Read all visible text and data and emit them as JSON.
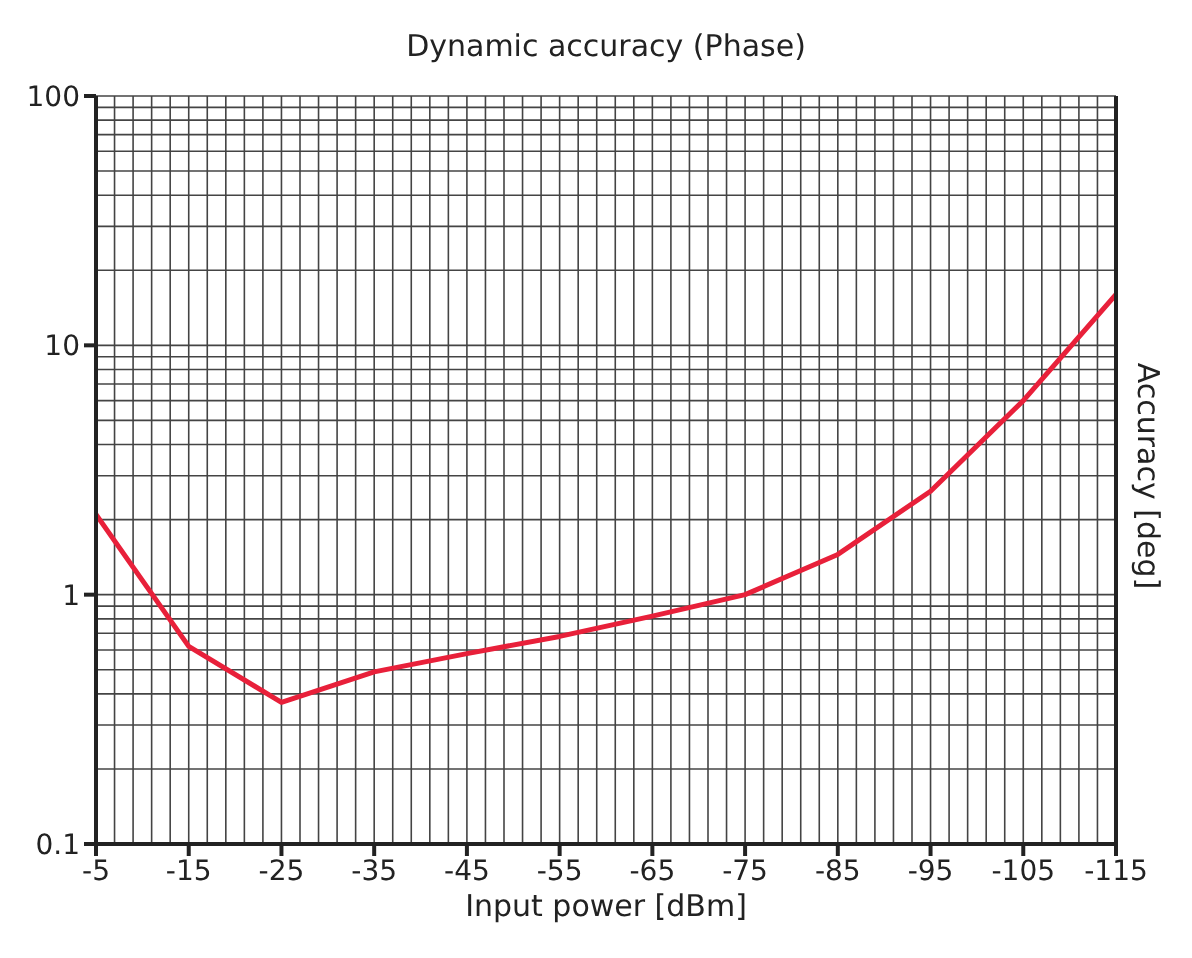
{
  "chart_data": {
    "type": "line",
    "title": "Dynamic accuracy (Phase)",
    "xlabel": "Input power [dBm]",
    "ylabel": "Accuracy [deg]",
    "x": [
      -5,
      -15,
      -25,
      -35,
      -45,
      -55,
      -65,
      -75,
      -85,
      -95,
      -105,
      -115
    ],
    "series": [
      {
        "color": "#e8203a",
        "values": [
          2.1,
          0.62,
          0.37,
          0.49,
          0.58,
          0.68,
          0.82,
          1.0,
          1.45,
          2.6,
          6.0,
          16
        ]
      }
    ],
    "xlim": [
      -5,
      -115
    ],
    "xticks": [
      -5,
      -15,
      -25,
      -35,
      -45,
      -55,
      -65,
      -75,
      -85,
      -95,
      -105,
      -115
    ],
    "ylim": [
      0.1,
      100
    ],
    "yticks": [
      0.1,
      1,
      10,
      100
    ],
    "log": true,
    "grid": true,
    "marker": "none",
    "line_style": "solid"
  }
}
